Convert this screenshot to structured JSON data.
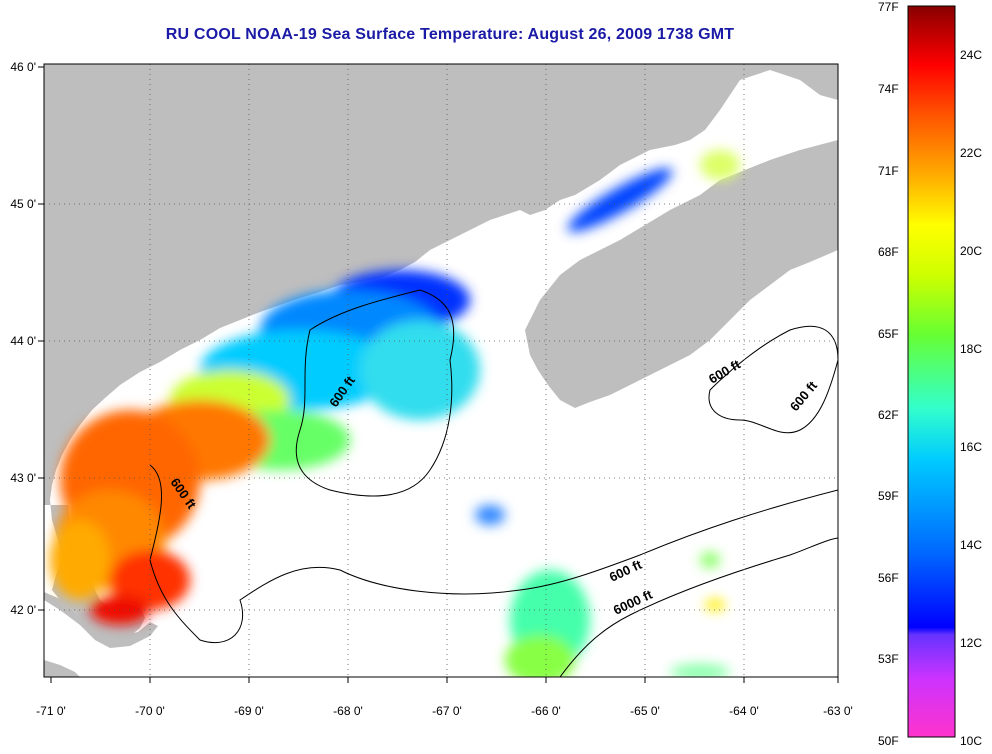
{
  "title": "RU COOL  NOAA-19  Sea Surface Temperature:  August 26, 2009 1738 GMT",
  "map": {
    "lon_range": [
      -71,
      -63
    ],
    "lat_range": [
      41.5,
      46
    ],
    "lon_ticks": [
      {
        "value": -71,
        "label": "-71 0'"
      },
      {
        "value": -70,
        "label": "-70 0'"
      },
      {
        "value": -69,
        "label": "-69 0'"
      },
      {
        "value": -68,
        "label": "-68 0'"
      },
      {
        "value": -67,
        "label": "-67 0'"
      },
      {
        "value": -66,
        "label": "-66 0'"
      },
      {
        "value": -65,
        "label": "-65 0'"
      },
      {
        "value": -64,
        "label": "-64 0'"
      },
      {
        "value": -63,
        "label": "-63 0'"
      }
    ],
    "lat_ticks": [
      {
        "value": 46,
        "label": "46 0'"
      },
      {
        "value": 45,
        "label": "45 0'"
      },
      {
        "value": 44,
        "label": "44 0'"
      },
      {
        "value": 43,
        "label": "43 0'"
      },
      {
        "value": 42,
        "label": "42 0'"
      }
    ],
    "contour_labels": [
      "600 ft",
      "600 ft",
      "600 ft",
      "600 ft",
      "600 ft",
      "6000 ft"
    ],
    "land_color": "#bebebe",
    "no_data_color": "#ffffff",
    "grid": "dotted"
  },
  "colorbar": {
    "fahrenheit_labels": [
      "77F",
      "74F",
      "71F",
      "68F",
      "65F",
      "62F",
      "59F",
      "56F",
      "53F",
      "50F"
    ],
    "celsius_labels": [
      "24C",
      "22C",
      "20C",
      "18C",
      "16C",
      "14C",
      "12C",
      "10C"
    ],
    "range_c": [
      10,
      25
    ],
    "colors": [
      "#ff33cc",
      "#9933ff",
      "#0000ff",
      "#0066ff",
      "#00ccff",
      "#33ffcc",
      "#66ff33",
      "#ccff00",
      "#ffff00",
      "#ffaa00",
      "#ff5500",
      "#ff0000",
      "#880000"
    ]
  }
}
